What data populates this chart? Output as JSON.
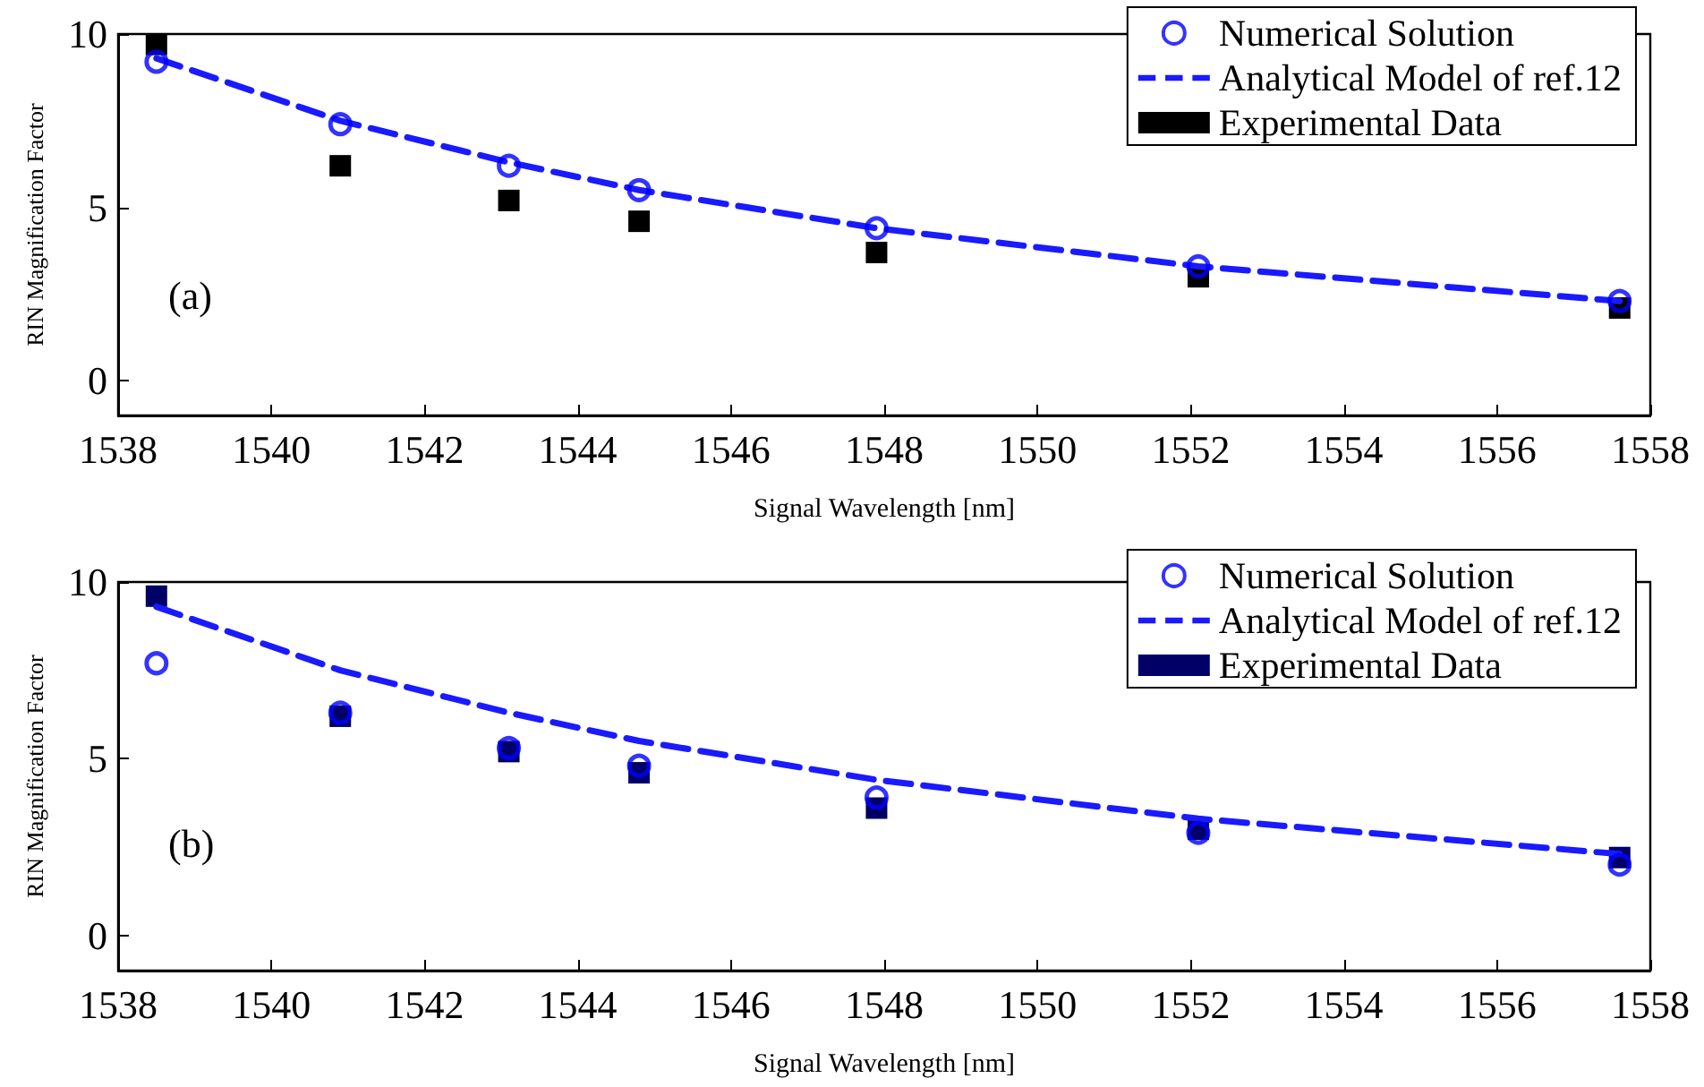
{
  "chart_data": [
    {
      "type": "scatter",
      "xlabel": "Signal Wavelength [nm]",
      "ylabel": "RIN Magnification Factor",
      "annotations": [
        "(a)"
      ],
      "xlim": [
        1538,
        1558
      ],
      "xticks": [
        1538,
        1540,
        1542,
        1544,
        1546,
        1548,
        1550,
        1552,
        1554,
        1556,
        1558
      ],
      "ylim": [
        -1,
        10
      ],
      "yticks": [
        0,
        5,
        10
      ],
      "grid": false,
      "legend": "top right",
      "x": [
        1538.5,
        1540.9,
        1543.1,
        1544.8,
        1547.9,
        1552.1,
        1557.6
      ],
      "series": [
        {
          "name": "Numerical Solution",
          "type": "scatter",
          "marker": "circle",
          "color": "#0000ff",
          "values": [
            9.2,
            7.4,
            6.2,
            5.5,
            4.4,
            3.3,
            2.3
          ]
        },
        {
          "name": "Analytical Model of ref.12",
          "type": "line",
          "marker": "none",
          "line_style": "dashed",
          "color": "#1a1aff",
          "values": [
            9.3,
            7.5,
            6.3,
            5.5,
            4.4,
            3.3,
            2.3
          ]
        },
        {
          "name": "Experimental Data",
          "type": "scatter",
          "marker": "square",
          "color": "#000000",
          "values": [
            9.7,
            6.2,
            5.2,
            4.6,
            3.7,
            3.0,
            2.1
          ]
        }
      ]
    },
    {
      "type": "scatter",
      "xlabel": "Signal Wavelength [nm]",
      "ylabel": "RIN Magnification Factor",
      "annotations": [
        "(b)"
      ],
      "xlim": [
        1538,
        1558
      ],
      "xticks": [
        1538,
        1540,
        1542,
        1544,
        1546,
        1548,
        1550,
        1552,
        1554,
        1556,
        1558
      ],
      "ylim": [
        -1,
        10
      ],
      "yticks": [
        0,
        5,
        10
      ],
      "grid": false,
      "legend": "top right",
      "x": [
        1538.5,
        1540.9,
        1543.1,
        1544.8,
        1547.9,
        1552.1,
        1557.6
      ],
      "series": [
        {
          "name": "Numerical Solution",
          "type": "scatter",
          "marker": "circle",
          "color": "#0000ff",
          "values": [
            7.7,
            6.3,
            5.3,
            4.8,
            3.9,
            2.9,
            2.0
          ]
        },
        {
          "name": "Analytical Model of ref.12",
          "type": "line",
          "marker": "none",
          "line_style": "dashed",
          "color": "#1a1aff",
          "values": [
            9.3,
            7.5,
            6.3,
            5.5,
            4.4,
            3.3,
            2.3
          ]
        },
        {
          "name": "Experimental Data",
          "type": "scatter",
          "marker": "square",
          "color": "#000066",
          "values": [
            9.6,
            6.2,
            5.2,
            4.6,
            3.6,
            3.0,
            2.2
          ]
        }
      ]
    }
  ]
}
